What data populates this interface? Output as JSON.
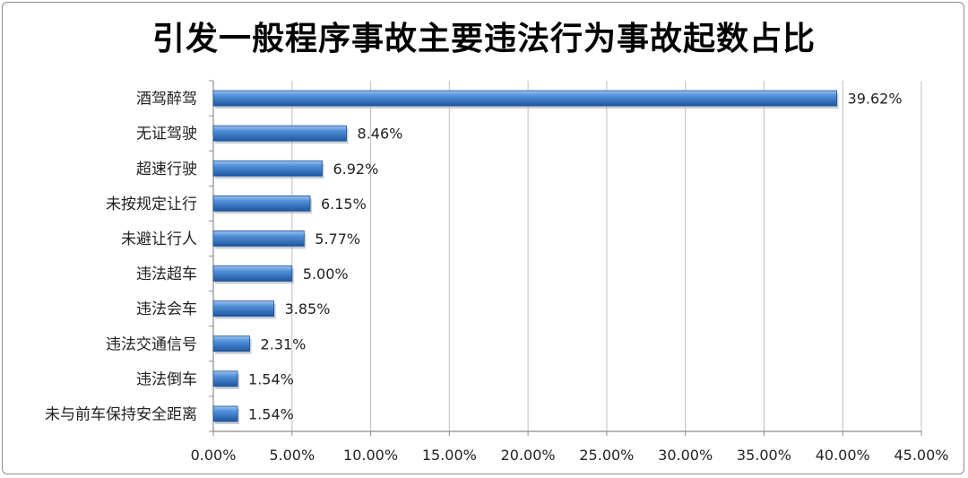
{
  "chart_data": {
    "type": "bar",
    "orientation": "horizontal",
    "title": "引发一般程序事故主要违法行为事故起数占比",
    "categories": [
      "酒驾醉驾",
      "无证驾驶",
      "超速行驶",
      "未按规定让行",
      "未避让行人",
      "违法超车",
      "违法会车",
      "违法交通信号",
      "违法倒车",
      "未与前车保持安全距离"
    ],
    "values": [
      39.62,
      8.46,
      6.92,
      6.15,
      5.77,
      5.0,
      3.85,
      2.31,
      1.54,
      1.54
    ],
    "data_labels": [
      "39.62%",
      "8.46%",
      "6.92%",
      "6.15%",
      "5.77%",
      "5.00%",
      "3.85%",
      "2.31%",
      "1.54%",
      "1.54%"
    ],
    "xlim": [
      0,
      45
    ],
    "x_ticks": [
      0,
      5,
      10,
      15,
      20,
      25,
      30,
      35,
      40,
      45
    ],
    "x_tick_labels": [
      "0.00%",
      "5.00%",
      "10.00%",
      "15.00%",
      "20.00%",
      "25.00%",
      "30.00%",
      "35.00%",
      "40.00%",
      "45.00%"
    ],
    "grid": true,
    "legend": "none",
    "bar_color": "#3a78c2"
  }
}
